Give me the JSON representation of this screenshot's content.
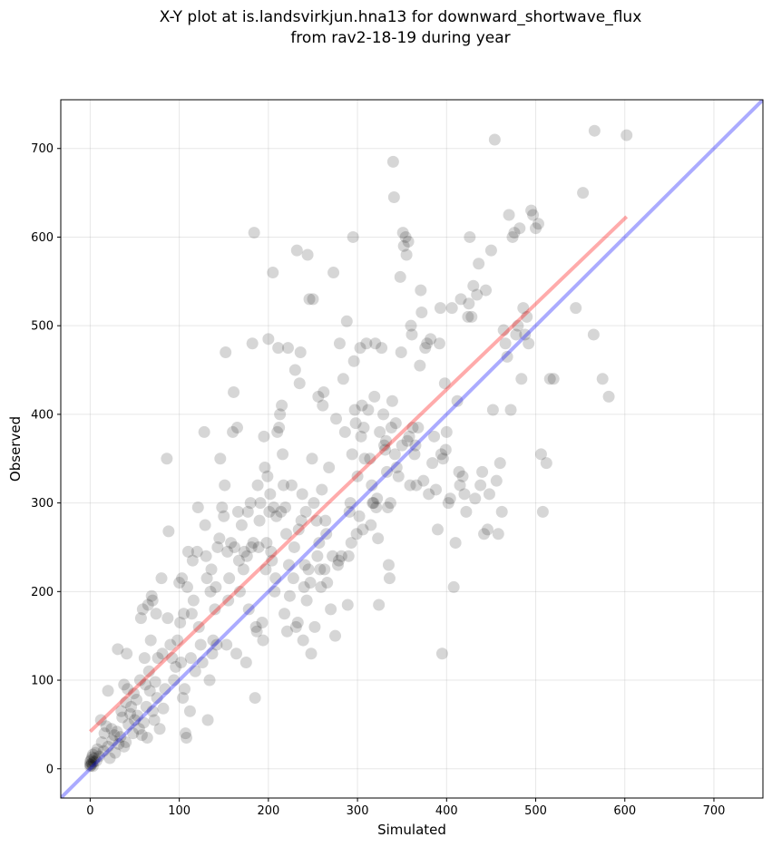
{
  "title_line1": "X-Y plot at is.landsvirkjun.hna13 for downward_shortwave_flux",
  "title_line2": "from rav2-18-19 during year",
  "chart_data": {
    "type": "scatter",
    "title": "X-Y plot at is.landsvirkjun.hna13 for downward_shortwave_flux from rav2-18-19 during year",
    "xlabel": "Simulated",
    "ylabel": "Observed",
    "xlim": [
      -33,
      755
    ],
    "ylim": [
      -33,
      755
    ],
    "xticks": [
      0,
      100,
      200,
      300,
      400,
      500,
      600,
      700
    ],
    "yticks": [
      0,
      100,
      200,
      300,
      400,
      500,
      600,
      700
    ],
    "grid": true,
    "point_color": "#000000",
    "point_alpha": 0.16,
    "regression_line": {
      "color": "#ff0000",
      "alpha": 0.33,
      "x": [
        0,
        602
      ],
      "y": [
        42,
        623
      ]
    },
    "identity_line": {
      "color": "#0000ff",
      "alpha": 0.33,
      "x": [
        -33,
        755
      ],
      "y": [
        -33,
        755
      ]
    },
    "points": [
      [
        0,
        3
      ],
      [
        0,
        5
      ],
      [
        0,
        8
      ],
      [
        1,
        4
      ],
      [
        1,
        10
      ],
      [
        2,
        6
      ],
      [
        2,
        13
      ],
      [
        3,
        3
      ],
      [
        3,
        16
      ],
      [
        4,
        8
      ],
      [
        5,
        12
      ],
      [
        6,
        18
      ],
      [
        7,
        9
      ],
      [
        8,
        22
      ],
      [
        10,
        14
      ],
      [
        12,
        55
      ],
      [
        13,
        30
      ],
      [
        15,
        20
      ],
      [
        16,
        40
      ],
      [
        18,
        48
      ],
      [
        20,
        88
      ],
      [
        20,
        25
      ],
      [
        22,
        12
      ],
      [
        24,
        45
      ],
      [
        25,
        32
      ],
      [
        27,
        38
      ],
      [
        28,
        18
      ],
      [
        30,
        42
      ],
      [
        31,
        135
      ],
      [
        32,
        28
      ],
      [
        34,
        36
      ],
      [
        35,
        65
      ],
      [
        36,
        58
      ],
      [
        38,
        25
      ],
      [
        38,
        95
      ],
      [
        40,
        30
      ],
      [
        40,
        75
      ],
      [
        41,
        130
      ],
      [
        42,
        90
      ],
      [
        43,
        50
      ],
      [
        45,
        62
      ],
      [
        46,
        70
      ],
      [
        48,
        40
      ],
      [
        49,
        85
      ],
      [
        50,
        55
      ],
      [
        52,
        78
      ],
      [
        53,
        60
      ],
      [
        55,
        45
      ],
      [
        56,
        100
      ],
      [
        57,
        170
      ],
      [
        58,
        38
      ],
      [
        59,
        180
      ],
      [
        60,
        52
      ],
      [
        61,
        125
      ],
      [
        62,
        95
      ],
      [
        63,
        70
      ],
      [
        64,
        35
      ],
      [
        65,
        185
      ],
      [
        66,
        110
      ],
      [
        67,
        88
      ],
      [
        68,
        145
      ],
      [
        69,
        195
      ],
      [
        70,
        65
      ],
      [
        70,
        190
      ],
      [
        72,
        55
      ],
      [
        73,
        98
      ],
      [
        74,
        175
      ],
      [
        75,
        80
      ],
      [
        76,
        125
      ],
      [
        78,
        45
      ],
      [
        80,
        215
      ],
      [
        81,
        130
      ],
      [
        82,
        68
      ],
      [
        84,
        90
      ],
      [
        86,
        350
      ],
      [
        87,
        170
      ],
      [
        88,
        268
      ],
      [
        90,
        140
      ],
      [
        92,
        125
      ],
      [
        94,
        100
      ],
      [
        96,
        115
      ],
      [
        98,
        145
      ],
      [
        100,
        210
      ],
      [
        101,
        165
      ],
      [
        102,
        120
      ],
      [
        103,
        215
      ],
      [
        104,
        80
      ],
      [
        105,
        175
      ],
      [
        106,
        90
      ],
      [
        107,
        40
      ],
      [
        108,
        35
      ],
      [
        109,
        205
      ],
      [
        110,
        245
      ],
      [
        112,
        65
      ],
      [
        113,
        125
      ],
      [
        114,
        175
      ],
      [
        115,
        235
      ],
      [
        116,
        190
      ],
      [
        118,
        110
      ],
      [
        120,
        245
      ],
      [
        121,
        295
      ],
      [
        122,
        160
      ],
      [
        124,
        140
      ],
      [
        126,
        120
      ],
      [
        128,
        380
      ],
      [
        129,
        275
      ],
      [
        130,
        240
      ],
      [
        131,
        215
      ],
      [
        132,
        55
      ],
      [
        134,
        100
      ],
      [
        135,
        200
      ],
      [
        136,
        225
      ],
      [
        137,
        130
      ],
      [
        138,
        145
      ],
      [
        140,
        180
      ],
      [
        141,
        205
      ],
      [
        142,
        140
      ],
      [
        143,
        250
      ],
      [
        145,
        260
      ],
      [
        146,
        350
      ],
      [
        148,
        295
      ],
      [
        150,
        285
      ],
      [
        151,
        320
      ],
      [
        152,
        470
      ],
      [
        153,
        140
      ],
      [
        154,
        245
      ],
      [
        155,
        190
      ],
      [
        156,
        215
      ],
      [
        158,
        255
      ],
      [
        160,
        380
      ],
      [
        161,
        425
      ],
      [
        162,
        250
      ],
      [
        164,
        130
      ],
      [
        165,
        385
      ],
      [
        166,
        290
      ],
      [
        167,
        235
      ],
      [
        168,
        200
      ],
      [
        170,
        275
      ],
      [
        172,
        225
      ],
      [
        173,
        245
      ],
      [
        175,
        120
      ],
      [
        176,
        240
      ],
      [
        177,
        290
      ],
      [
        178,
        180
      ],
      [
        180,
        300
      ],
      [
        181,
        250
      ],
      [
        182,
        480
      ],
      [
        183,
        255
      ],
      [
        184,
        605
      ],
      [
        185,
        80
      ],
      [
        186,
        160
      ],
      [
        187,
        155
      ],
      [
        188,
        320
      ],
      [
        189,
        250
      ],
      [
        190,
        280
      ],
      [
        191,
        300
      ],
      [
        193,
        165
      ],
      [
        194,
        145
      ],
      [
        195,
        375
      ],
      [
        196,
        340
      ],
      [
        197,
        225
      ],
      [
        198,
        255
      ],
      [
        199,
        330
      ],
      [
        200,
        485
      ],
      [
        201,
        290
      ],
      [
        202,
        310
      ],
      [
        203,
        245
      ],
      [
        204,
        235
      ],
      [
        205,
        560
      ],
      [
        206,
        295
      ],
      [
        207,
        200
      ],
      [
        208,
        215
      ],
      [
        209,
        285
      ],
      [
        210,
        380
      ],
      [
        211,
        475
      ],
      [
        212,
        385
      ],
      [
        213,
        400
      ],
      [
        214,
        290
      ],
      [
        215,
        410
      ],
      [
        216,
        355
      ],
      [
        217,
        320
      ],
      [
        218,
        175
      ],
      [
        219,
        295
      ],
      [
        220,
        265
      ],
      [
        221,
        155
      ],
      [
        222,
        475
      ],
      [
        223,
        230
      ],
      [
        224,
        195
      ],
      [
        226,
        320
      ],
      [
        228,
        215
      ],
      [
        229,
        250
      ],
      [
        230,
        450
      ],
      [
        231,
        160
      ],
      [
        232,
        585
      ],
      [
        233,
        165
      ],
      [
        234,
        270
      ],
      [
        235,
        435
      ],
      [
        236,
        470
      ],
      [
        237,
        280
      ],
      [
        238,
        310
      ],
      [
        239,
        145
      ],
      [
        240,
        205
      ],
      [
        241,
        230
      ],
      [
        242,
        290
      ],
      [
        243,
        190
      ],
      [
        244,
        580
      ],
      [
        245,
        225
      ],
      [
        246,
        530
      ],
      [
        247,
        210
      ],
      [
        248,
        130
      ],
      [
        249,
        350
      ],
      [
        250,
        530
      ],
      [
        251,
        300
      ],
      [
        252,
        160
      ],
      [
        254,
        280
      ],
      [
        255,
        240
      ],
      [
        256,
        420
      ],
      [
        257,
        255
      ],
      [
        258,
        225
      ],
      [
        259,
        205
      ],
      [
        260,
        315
      ],
      [
        261,
        410
      ],
      [
        262,
        425
      ],
      [
        263,
        225
      ],
      [
        264,
        280
      ],
      [
        265,
        265
      ],
      [
        266,
        210
      ],
      [
        268,
        340
      ],
      [
        270,
        180
      ],
      [
        272,
        240
      ],
      [
        273,
        560
      ],
      [
        275,
        150
      ],
      [
        276,
        395
      ],
      [
        278,
        230
      ],
      [
        279,
        235
      ],
      [
        280,
        480
      ],
      [
        282,
        240
      ],
      [
        284,
        440
      ],
      [
        286,
        380
      ],
      [
        288,
        505
      ],
      [
        289,
        185
      ],
      [
        290,
        240
      ],
      [
        291,
        290
      ],
      [
        292,
        300
      ],
      [
        293,
        255
      ],
      [
        294,
        355
      ],
      [
        295,
        600
      ],
      [
        296,
        460
      ],
      [
        297,
        405
      ],
      [
        298,
        390
      ],
      [
        299,
        265
      ],
      [
        300,
        330
      ],
      [
        302,
        285
      ],
      [
        303,
        475
      ],
      [
        304,
        375
      ],
      [
        305,
        410
      ],
      [
        306,
        270
      ],
      [
        307,
        385
      ],
      [
        308,
        350
      ],
      [
        310,
        480
      ],
      [
        312,
        405
      ],
      [
        314,
        350
      ],
      [
        315,
        275
      ],
      [
        316,
        320
      ],
      [
        317,
        300
      ],
      [
        318,
        300
      ],
      [
        319,
        420
      ],
      [
        320,
        480
      ],
      [
        321,
        295
      ],
      [
        322,
        305
      ],
      [
        323,
        260
      ],
      [
        324,
        185
      ],
      [
        325,
        380
      ],
      [
        327,
        475
      ],
      [
        329,
        400
      ],
      [
        330,
        365
      ],
      [
        331,
        360
      ],
      [
        332,
        370
      ],
      [
        333,
        335
      ],
      [
        334,
        295
      ],
      [
        335,
        230
      ],
      [
        336,
        215
      ],
      [
        337,
        300
      ],
      [
        338,
        385
      ],
      [
        339,
        415
      ],
      [
        340,
        685
      ],
      [
        341,
        645
      ],
      [
        342,
        355
      ],
      [
        343,
        390
      ],
      [
        344,
        340
      ],
      [
        346,
        330
      ],
      [
        348,
        555
      ],
      [
        349,
        470
      ],
      [
        350,
        365
      ],
      [
        351,
        605
      ],
      [
        352,
        590
      ],
      [
        354,
        600
      ],
      [
        355,
        580
      ],
      [
        356,
        370
      ],
      [
        357,
        595
      ],
      [
        358,
        375
      ],
      [
        359,
        320
      ],
      [
        360,
        500
      ],
      [
        361,
        490
      ],
      [
        362,
        385
      ],
      [
        364,
        355
      ],
      [
        365,
        365
      ],
      [
        366,
        320
      ],
      [
        368,
        385
      ],
      [
        370,
        455
      ],
      [
        371,
        540
      ],
      [
        372,
        515
      ],
      [
        374,
        325
      ],
      [
        376,
        475
      ],
      [
        378,
        480
      ],
      [
        380,
        310
      ],
      [
        382,
        485
      ],
      [
        384,
        345
      ],
      [
        386,
        375
      ],
      [
        388,
        315
      ],
      [
        390,
        270
      ],
      [
        392,
        480
      ],
      [
        393,
        520
      ],
      [
        394,
        355
      ],
      [
        395,
        130
      ],
      [
        396,
        350
      ],
      [
        398,
        435
      ],
      [
        399,
        360
      ],
      [
        400,
        380
      ],
      [
        402,
        300
      ],
      [
        404,
        305
      ],
      [
        406,
        520
      ],
      [
        408,
        205
      ],
      [
        410,
        255
      ],
      [
        412,
        415
      ],
      [
        414,
        335
      ],
      [
        415,
        320
      ],
      [
        416,
        530
      ],
      [
        418,
        330
      ],
      [
        420,
        310
      ],
      [
        422,
        290
      ],
      [
        424,
        510
      ],
      [
        425,
        525
      ],
      [
        426,
        600
      ],
      [
        428,
        510
      ],
      [
        430,
        545
      ],
      [
        432,
        305
      ],
      [
        434,
        535
      ],
      [
        436,
        570
      ],
      [
        438,
        320
      ],
      [
        440,
        335
      ],
      [
        442,
        265
      ],
      [
        444,
        540
      ],
      [
        446,
        270
      ],
      [
        448,
        310
      ],
      [
        450,
        585
      ],
      [
        452,
        405
      ],
      [
        454,
        710
      ],
      [
        456,
        325
      ],
      [
        458,
        265
      ],
      [
        460,
        345
      ],
      [
        462,
        290
      ],
      [
        464,
        495
      ],
      [
        466,
        480
      ],
      [
        468,
        465
      ],
      [
        470,
        625
      ],
      [
        472,
        405
      ],
      [
        474,
        600
      ],
      [
        476,
        605
      ],
      [
        478,
        490
      ],
      [
        480,
        500
      ],
      [
        482,
        610
      ],
      [
        484,
        440
      ],
      [
        486,
        520
      ],
      [
        488,
        490
      ],
      [
        490,
        510
      ],
      [
        492,
        480
      ],
      [
        495,
        630
      ],
      [
        497,
        625
      ],
      [
        500,
        610
      ],
      [
        503,
        615
      ],
      [
        506,
        355
      ],
      [
        508,
        290
      ],
      [
        512,
        345
      ],
      [
        516,
        440
      ],
      [
        520,
        440
      ],
      [
        545,
        520
      ],
      [
        553,
        650
      ],
      [
        565,
        490
      ],
      [
        566,
        720
      ],
      [
        575,
        440
      ],
      [
        582,
        420
      ],
      [
        602,
        715
      ]
    ]
  }
}
